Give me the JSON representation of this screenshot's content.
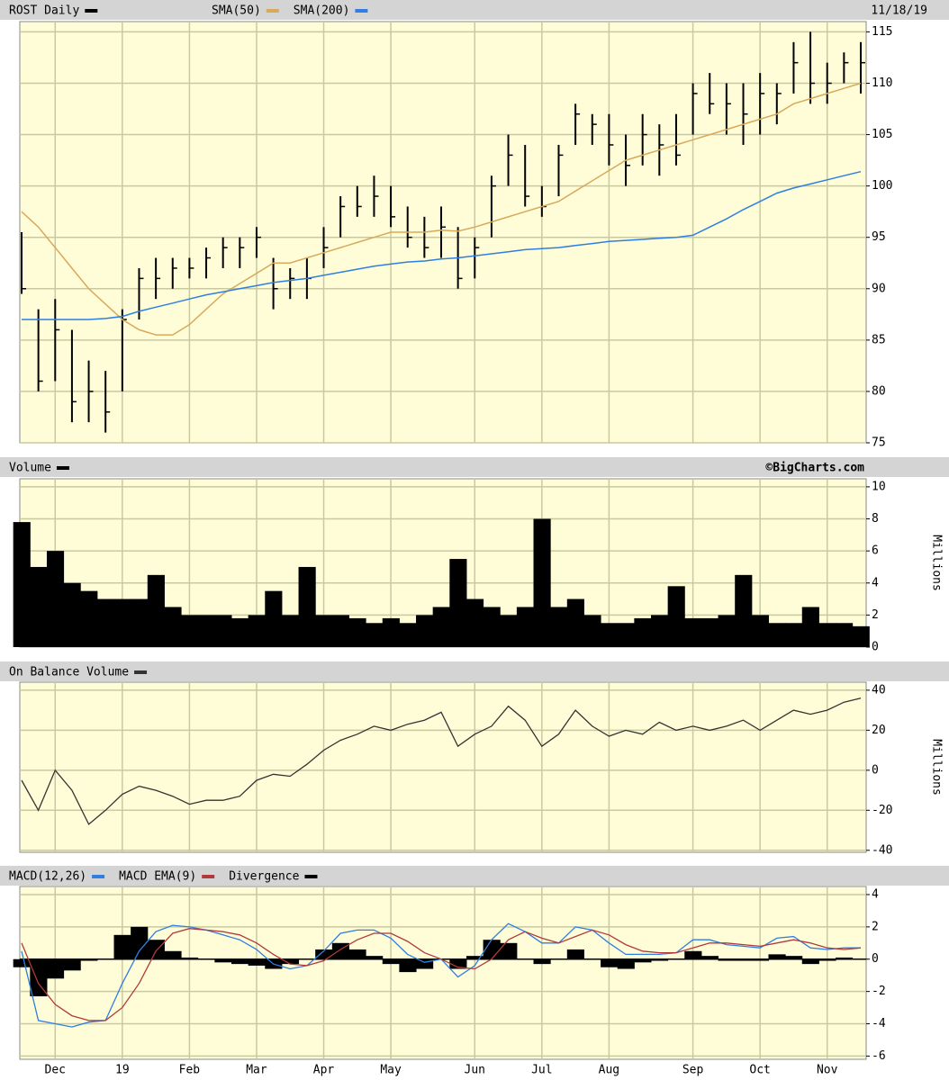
{
  "chart_data": [
    {
      "type": "ohlc",
      "title": "ROST Daily",
      "date": "11/18/19",
      "color": "#000000",
      "high": [
        95.5,
        88,
        89,
        86,
        83,
        82,
        88,
        92,
        93,
        93,
        93,
        94,
        95,
        95,
        96,
        93,
        92,
        93,
        96,
        99,
        100,
        101,
        100,
        98,
        97,
        98,
        96,
        95,
        101,
        105,
        104,
        100,
        104,
        108,
        107,
        107,
        105,
        107,
        106,
        107,
        110,
        111,
        110,
        110,
        111,
        110,
        114,
        115,
        112,
        113,
        114
      ],
      "low": [
        89.5,
        80,
        81,
        77,
        77,
        76,
        80,
        87,
        89,
        90,
        91,
        91,
        92,
        92,
        93,
        88,
        89,
        89,
        92,
        95,
        97,
        97,
        96,
        94,
        93,
        93,
        90,
        91,
        95,
        100,
        98,
        97,
        99,
        104,
        104,
        102,
        100,
        102,
        101,
        102,
        105,
        107,
        105,
        104,
        105,
        106,
        109,
        108,
        108,
        110,
        109
      ],
      "close": [
        90,
        81,
        86,
        79,
        80,
        78,
        87,
        91,
        91,
        92,
        92,
        93,
        94,
        94,
        95,
        90,
        91,
        91,
        94,
        98,
        98,
        99,
        97,
        95,
        94,
        96,
        91,
        94,
        100,
        103,
        99,
        98,
        103,
        107,
        106,
        104,
        102,
        105,
        104,
        103,
        109,
        108,
        108,
        107,
        109,
        109,
        112,
        110,
        110,
        112,
        112
      ],
      "series": [
        {
          "name": "SMA(50)",
          "color": "#d9a95b",
          "values": [
            97.5,
            96,
            94,
            92,
            90,
            88.5,
            87,
            86,
            85.5,
            85.5,
            86.5,
            88,
            89.5,
            90.5,
            91.5,
            92.5,
            92.5,
            93,
            93.5,
            94,
            94.5,
            95,
            95.5,
            95.5,
            95.5,
            95.7,
            95.6,
            96,
            96.5,
            97,
            97.5,
            98,
            98.5,
            99.5,
            100.5,
            101.5,
            102.5,
            103,
            103.5,
            104,
            104.5,
            105,
            105.5,
            106,
            106.5,
            107,
            108,
            108.5,
            109,
            109.5,
            110
          ]
        },
        {
          "name": "SMA(200)",
          "color": "#2f7fe0",
          "values": [
            87,
            87,
            87,
            87,
            87,
            87.1,
            87.3,
            87.8,
            88.2,
            88.6,
            89,
            89.4,
            89.7,
            90,
            90.3,
            90.6,
            90.8,
            91,
            91.3,
            91.6,
            91.9,
            92.2,
            92.4,
            92.6,
            92.7,
            92.9,
            93,
            93.2,
            93.4,
            93.6,
            93.8,
            93.9,
            94,
            94.2,
            94.4,
            94.6,
            94.7,
            94.8,
            94.9,
            95,
            95.2,
            96,
            96.8,
            97.7,
            98.5,
            99.3,
            99.8,
            100.2,
            100.6,
            101,
            101.4
          ]
        }
      ],
      "ylim": [
        75,
        116
      ],
      "yticks": [
        75,
        80,
        85,
        90,
        95,
        100,
        105,
        110,
        115
      ],
      "grid": true
    },
    {
      "type": "area",
      "title": "Volume",
      "color": "#000000",
      "credit": "©BigCharts.com",
      "axis_label": "Millions",
      "values": [
        7.8,
        5,
        6,
        4,
        3.5,
        3,
        3,
        3,
        4.5,
        2.5,
        2,
        2,
        2,
        1.8,
        2,
        3.5,
        2,
        5,
        2,
        2,
        1.8,
        1.5,
        1.8,
        1.5,
        2,
        2.5,
        5.5,
        3,
        2.5,
        2,
        2.5,
        8,
        2.5,
        3,
        2,
        1.5,
        1.5,
        1.8,
        2,
        3.8,
        1.8,
        1.8,
        2,
        4.5,
        2,
        1.5,
        1.5,
        2.5,
        1.5,
        1.5,
        1.3
      ],
      "ylim": [
        0,
        10.5
      ],
      "yticks": [
        0,
        2,
        4,
        6,
        8,
        10
      ],
      "grid": true
    },
    {
      "type": "line",
      "title": "On Balance Volume",
      "color": "#333333",
      "axis_label": "Millions",
      "values": [
        -5,
        -20,
        0,
        -10,
        -27,
        -20,
        -12,
        -8,
        -10,
        -13,
        -17,
        -15,
        -15,
        -13,
        -5,
        -2,
        -3,
        3,
        10,
        15,
        18,
        22,
        20,
        23,
        25,
        29,
        12,
        18,
        22,
        32,
        25,
        12,
        18,
        30,
        22,
        17,
        20,
        18,
        24,
        20,
        22,
        20,
        22,
        25,
        20,
        25,
        30,
        28,
        30,
        34,
        36
      ],
      "ylim": [
        -41,
        44
      ],
      "yticks": [
        -40,
        -20,
        0,
        20,
        40
      ],
      "grid": true
    },
    {
      "type": "macd",
      "series": [
        {
          "name": "MACD(12,26)",
          "color": "#2f7fe0",
          "values": [
            0.5,
            -3.8,
            -4,
            -4.2,
            -3.9,
            -3.8,
            -1.5,
            0.5,
            1.7,
            2.1,
            2,
            1.8,
            1.5,
            1.2,
            0.6,
            -0.3,
            -0.6,
            -0.4,
            0.5,
            1.6,
            1.8,
            1.8,
            1.3,
            0.3,
            -0.2,
            0,
            -1.1,
            -0.4,
            1.2,
            2.2,
            1.7,
            1,
            1,
            2,
            1.8,
            1,
            0.3,
            0.3,
            0.3,
            0.4,
            1.2,
            1.2,
            0.9,
            0.8,
            0.7,
            1.3,
            1.4,
            0.7,
            0.6,
            0.7,
            0.7
          ]
        },
        {
          "name": "MACD EMA(9)",
          "color": "#b03a3a",
          "values": [
            1,
            -1.5,
            -2.8,
            -3.5,
            -3.8,
            -3.8,
            -3,
            -1.5,
            0.5,
            1.6,
            1.9,
            1.8,
            1.7,
            1.5,
            1,
            0.3,
            -0.3,
            -0.4,
            -0.1,
            0.6,
            1.2,
            1.6,
            1.6,
            1.1,
            0.4,
            0,
            -0.5,
            -0.6,
            0,
            1.2,
            1.7,
            1.3,
            1,
            1.4,
            1.8,
            1.5,
            0.9,
            0.5,
            0.4,
            0.4,
            0.7,
            1,
            1,
            0.9,
            0.8,
            1,
            1.2,
            1,
            0.7,
            0.6,
            0.7
          ]
        },
        {
          "name": "Divergence",
          "color": "#000000",
          "kind": "bar",
          "values": [
            -0.5,
            -2.3,
            -1.2,
            -0.7,
            -0.1,
            0,
            1.5,
            2,
            1.2,
            0.5,
            0.1,
            0,
            -0.2,
            -0.3,
            -0.4,
            -0.6,
            -0.3,
            0,
            0.6,
            1,
            0.6,
            0.2,
            -0.3,
            -0.8,
            -0.6,
            0,
            -0.6,
            0.2,
            1.2,
            1,
            0,
            -0.3,
            0,
            0.6,
            0,
            -0.5,
            -0.6,
            -0.2,
            -0.1,
            0,
            0.5,
            0.2,
            -0.1,
            -0.1,
            -0.1,
            0.3,
            0.2,
            -0.3,
            -0.1,
            0.1,
            0
          ]
        }
      ],
      "categories": [
        null,
        null,
        "Dec",
        null,
        null,
        null,
        "19",
        null,
        null,
        null,
        "Feb",
        null,
        null,
        null,
        "Mar",
        null,
        null,
        null,
        "Apr",
        null,
        null,
        null,
        "May",
        null,
        null,
        null,
        null,
        "Jun",
        null,
        null,
        null,
        "Jul",
        null,
        null,
        null,
        "Aug",
        null,
        null,
        null,
        null,
        "Sep",
        null,
        null,
        null,
        "Oct",
        null,
        null,
        null,
        "Nov",
        null,
        null
      ],
      "ylim": [
        -6.2,
        4.5
      ],
      "yticks": [
        -6,
        -4,
        -2,
        0,
        2,
        4
      ],
      "grid": true
    }
  ]
}
